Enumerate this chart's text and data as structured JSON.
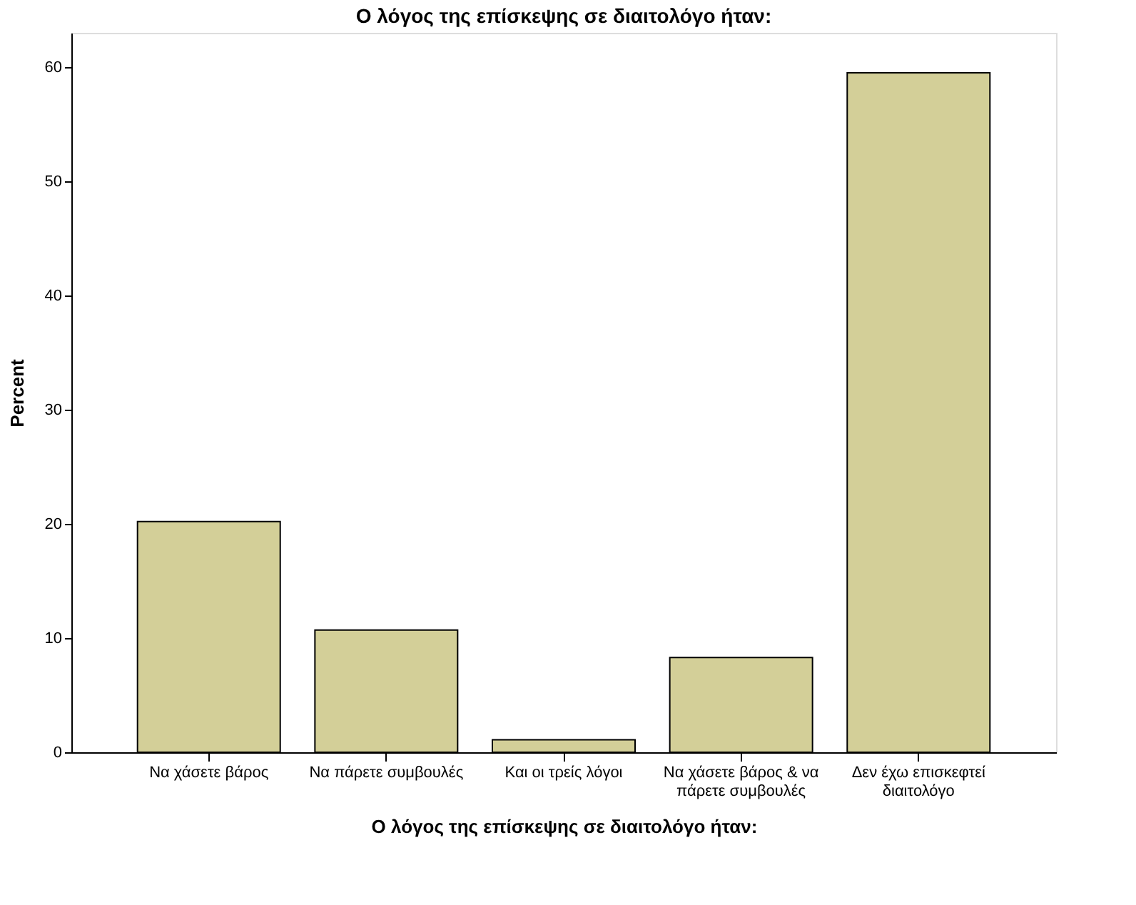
{
  "chart_data": {
    "type": "bar",
    "title": "Ο λόγος της επίσκεψης σε διαιτολόγο ήταν:",
    "xlabel": "Ο λόγος της επίσκεψης σε διαιτολόγο ήταν:",
    "ylabel": "Percent",
    "categories": [
      "Να χάσετε βάρος",
      "Να πάρετε συμβουλές",
      "Και οι τρείς λόγοι",
      "Να χάσετε βάρος & να πάρετε συμβουλές",
      "Δεν έχω επισκεφτεί διαιτολόγο"
    ],
    "values": [
      20.2,
      10.7,
      1.1,
      8.3,
      59.5
    ],
    "color": "#d3cf98",
    "ylim": [
      0,
      63
    ],
    "yticks": [
      0,
      10,
      20,
      30,
      40,
      50,
      60
    ],
    "grid": false
  }
}
